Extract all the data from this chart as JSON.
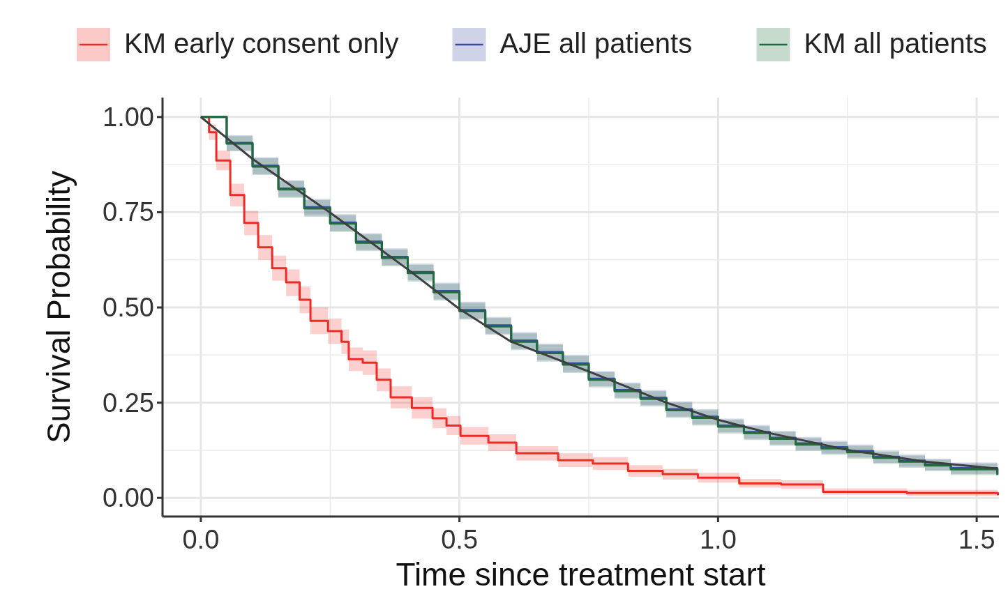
{
  "chart_data": {
    "type": "step",
    "xlabel": "Time since treatment start",
    "ylabel": "Survival Probability",
    "xlim": [
      -0.074,
      1.543
    ],
    "ylim": [
      -0.049,
      1.051
    ],
    "xticks": [
      {
        "value": 0,
        "label": "0.0"
      },
      {
        "value": 0.5,
        "label": "0.5"
      },
      {
        "value": 1,
        "label": "1.0"
      },
      {
        "value": 1.5,
        "label": "1.5"
      }
    ],
    "yticks": [
      {
        "value": 0,
        "label": "0.00"
      },
      {
        "value": 0.25,
        "label": "0.25"
      },
      {
        "value": 0.5,
        "label": "0.50"
      },
      {
        "value": 0.75,
        "label": "0.75"
      },
      {
        "value": 1,
        "label": "1.00"
      }
    ],
    "grid": true,
    "legend": "top",
    "line_style": "solid",
    "marker": "none",
    "series": [
      {
        "name": "KM early consent only",
        "color": "#ee2a24",
        "x": [
          0,
          0.016,
          0.03,
          0.057,
          0.084,
          0.111,
          0.138,
          0.165,
          0.191,
          0.212,
          0.246,
          0.272,
          0.286,
          0.313,
          0.34,
          0.367,
          0.408,
          0.448,
          0.475,
          0.502,
          0.556,
          0.61,
          0.691,
          0.758,
          0.826,
          0.893,
          0.961,
          1.041,
          1.122,
          1.203,
          1.365,
          1.541
        ],
        "values": [
          1,
          0.96,
          0.886,
          0.795,
          0.722,
          0.658,
          0.603,
          0.566,
          0.52,
          0.465,
          0.438,
          0.41,
          0.364,
          0.355,
          0.31,
          0.264,
          0.236,
          0.209,
          0.19,
          0.163,
          0.145,
          0.117,
          0.099,
          0.09,
          0.071,
          0.062,
          0.053,
          0.038,
          0.035,
          0.016,
          0.013,
          0.007
        ],
        "lower": [
          1,
          0.94,
          0.86,
          0.765,
          0.69,
          0.625,
          0.57,
          0.53,
          0.485,
          0.43,
          0.405,
          0.378,
          0.333,
          0.323,
          0.28,
          0.235,
          0.208,
          0.183,
          0.165,
          0.14,
          0.123,
          0.098,
          0.081,
          0.073,
          0.056,
          0.048,
          0.04,
          0.027,
          0.024,
          0.008,
          0.005,
          0.002
        ],
        "upper": [
          1,
          0.98,
          0.912,
          0.825,
          0.754,
          0.69,
          0.636,
          0.6,
          0.555,
          0.5,
          0.471,
          0.442,
          0.395,
          0.387,
          0.34,
          0.293,
          0.264,
          0.235,
          0.215,
          0.186,
          0.167,
          0.136,
          0.117,
          0.107,
          0.086,
          0.076,
          0.066,
          0.05,
          0.046,
          0.025,
          0.021,
          0.013
        ]
      },
      {
        "name": "AJE all patients",
        "color": "#3a4fa0",
        "x": [
          0,
          0.05,
          0.1,
          0.15,
          0.2,
          0.25,
          0.3,
          0.35,
          0.4,
          0.45,
          0.5,
          0.55,
          0.6,
          0.65,
          0.7,
          0.75,
          0.8,
          0.85,
          0.9,
          0.95,
          1,
          1.05,
          1.1,
          1.15,
          1.2,
          1.25,
          1.3,
          1.35,
          1.4,
          1.45,
          1.54
        ],
        "values": [
          1,
          0.932,
          0.872,
          0.812,
          0.763,
          0.723,
          0.673,
          0.633,
          0.593,
          0.543,
          0.493,
          0.453,
          0.413,
          0.383,
          0.353,
          0.313,
          0.283,
          0.263,
          0.233,
          0.213,
          0.19,
          0.173,
          0.158,
          0.143,
          0.133,
          0.123,
          0.108,
          0.098,
          0.088,
          0.078,
          0.063
        ],
        "lower": [
          1,
          0.912,
          0.85,
          0.79,
          0.741,
          0.701,
          0.651,
          0.611,
          0.571,
          0.521,
          0.471,
          0.431,
          0.391,
          0.361,
          0.331,
          0.293,
          0.263,
          0.243,
          0.213,
          0.193,
          0.172,
          0.155,
          0.14,
          0.126,
          0.116,
          0.106,
          0.092,
          0.082,
          0.073,
          0.063,
          0.05
        ],
        "upper": [
          1,
          0.952,
          0.894,
          0.834,
          0.785,
          0.745,
          0.695,
          0.655,
          0.615,
          0.565,
          0.515,
          0.475,
          0.435,
          0.405,
          0.375,
          0.333,
          0.303,
          0.283,
          0.253,
          0.233,
          0.208,
          0.191,
          0.176,
          0.16,
          0.15,
          0.14,
          0.124,
          0.114,
          0.103,
          0.093,
          0.076
        ]
      },
      {
        "name": "KM all patients",
        "color": "#1f6b3a",
        "x": [
          0,
          0.05,
          0.1,
          0.15,
          0.2,
          0.25,
          0.3,
          0.35,
          0.4,
          0.45,
          0.5,
          0.55,
          0.6,
          0.65,
          0.7,
          0.75,
          0.8,
          0.85,
          0.9,
          0.95,
          1,
          1.05,
          1.1,
          1.15,
          1.2,
          1.25,
          1.3,
          1.35,
          1.4,
          1.45,
          1.54
        ],
        "values": [
          1,
          0.93,
          0.87,
          0.81,
          0.76,
          0.72,
          0.67,
          0.63,
          0.59,
          0.54,
          0.49,
          0.45,
          0.41,
          0.38,
          0.35,
          0.31,
          0.28,
          0.26,
          0.23,
          0.21,
          0.187,
          0.17,
          0.155,
          0.14,
          0.13,
          0.12,
          0.105,
          0.095,
          0.085,
          0.075,
          0.06
        ],
        "lower": [
          1,
          0.91,
          0.848,
          0.788,
          0.738,
          0.698,
          0.648,
          0.608,
          0.568,
          0.518,
          0.468,
          0.428,
          0.388,
          0.358,
          0.328,
          0.29,
          0.26,
          0.24,
          0.21,
          0.19,
          0.169,
          0.152,
          0.137,
          0.123,
          0.113,
          0.103,
          0.089,
          0.079,
          0.07,
          0.06,
          0.047
        ],
        "upper": [
          1,
          0.95,
          0.892,
          0.832,
          0.782,
          0.742,
          0.692,
          0.652,
          0.612,
          0.562,
          0.512,
          0.472,
          0.432,
          0.402,
          0.372,
          0.33,
          0.3,
          0.28,
          0.25,
          0.23,
          0.205,
          0.188,
          0.173,
          0.157,
          0.147,
          0.137,
          0.121,
          0.111,
          0.1,
          0.09,
          0.073
        ]
      },
      {
        "type": "line",
        "color": "#3f3f3f",
        "x": [
          0,
          0.1,
          0.25,
          0.4,
          0.5,
          0.6,
          0.75,
          0.9,
          1,
          1.1,
          1.25,
          1.4,
          1.54
        ],
        "values": [
          1,
          0.89,
          0.749,
          0.6,
          0.496,
          0.41,
          0.332,
          0.25,
          0.205,
          0.17,
          0.126,
          0.095,
          0.077
        ]
      }
    ]
  }
}
